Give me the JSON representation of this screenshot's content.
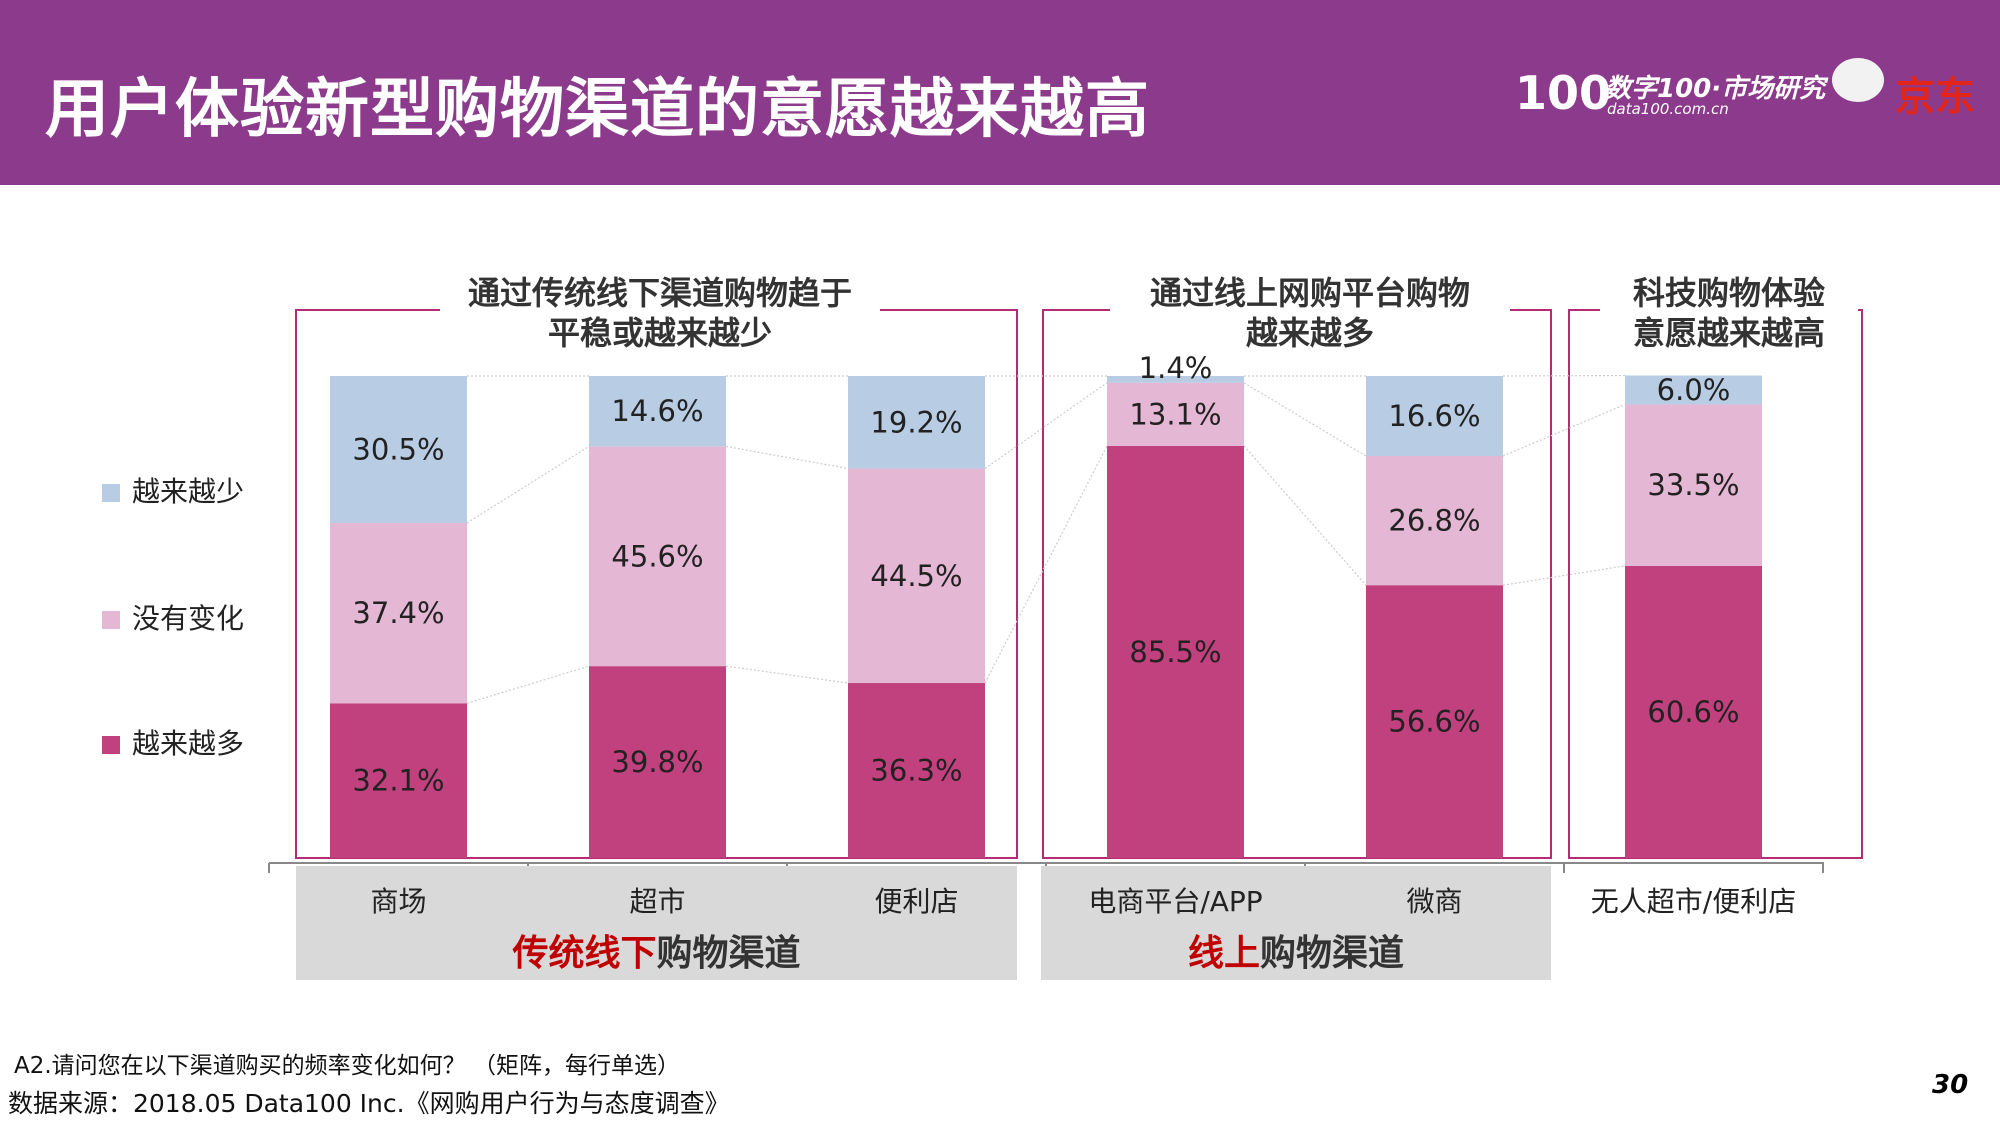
{
  "header": {
    "title": "用户体验新型购物渠道的意愿越来越高",
    "logo_main": "100",
    "logo_cn": "数字100·市场研究",
    "logo_url": "data100.com.cn",
    "partner": "京东"
  },
  "colors": {
    "header": "#8c3a8b",
    "more": "#c1407e",
    "same": "#e4b7d4",
    "less": "#b8cce4",
    "box": "#b62c73",
    "highlight": "#c00000"
  },
  "group_titles": [
    [
      "通过传统线下渠道购物趋于",
      "平稳或越来越少"
    ],
    [
      "通过线上网购平台购物",
      "越来越多"
    ],
    [
      "科技购物体验",
      "意愿越来越高"
    ]
  ],
  "group_labels": [
    {
      "red": "传统线下",
      "rest": "购物渠道"
    },
    {
      "red": "线上",
      "rest": "购物渠道"
    }
  ],
  "chart_data": {
    "type": "bar",
    "stacked": true,
    "ylim": [
      0,
      100
    ],
    "categories": [
      "商场",
      "超市",
      "便利店",
      "电商平台/APP",
      "微商",
      "无人超市/便利店"
    ],
    "series": [
      {
        "name": "越来越多",
        "values": [
          32.1,
          39.8,
          36.3,
          85.5,
          56.6,
          60.6
        ]
      },
      {
        "name": "没有变化",
        "values": [
          37.4,
          45.6,
          44.5,
          13.1,
          26.8,
          33.5
        ]
      },
      {
        "name": "越来越少",
        "values": [
          30.5,
          14.6,
          19.2,
          1.4,
          16.6,
          6.0
        ]
      }
    ],
    "legend": [
      "越来越少",
      "没有变化",
      "越来越多"
    ],
    "legend_position": "left"
  },
  "footer": {
    "question": "A2.请问您在以下渠道购买的频率变化如何？ （矩阵，每行单选）",
    "source": "数据来源：2018.05 Data100 Inc.《网购用户行为与态度调查》",
    "page": "30"
  }
}
